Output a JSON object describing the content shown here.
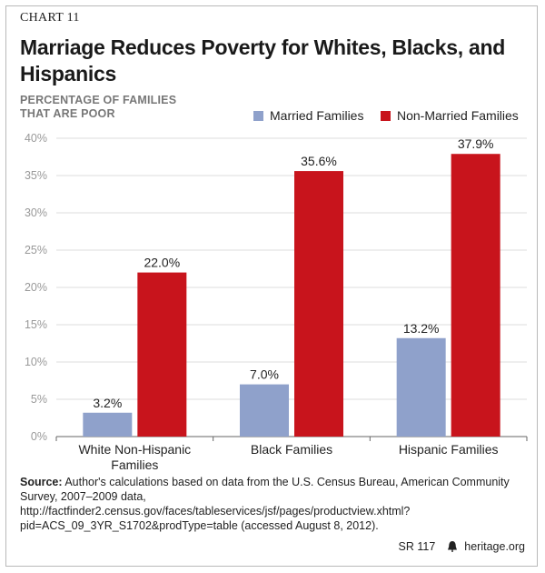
{
  "header": {
    "chart_number": "CHART 11",
    "title": "Marriage Reduces Poverty for Whites, Blacks, and Hispanics",
    "y_axis_label": "PERCENTAGE OF FAMILIES THAT ARE POOR"
  },
  "colors": {
    "married": "#8fa1cb",
    "non_married": "#c8141c",
    "axis": "#666666",
    "grid": "#dddddd"
  },
  "legend": [
    {
      "label": "Married Families",
      "color": "#8fa1cb"
    },
    {
      "label": "Non-Married Families",
      "color": "#c8141c"
    }
  ],
  "chart_data": {
    "type": "bar",
    "title": "Marriage Reduces Poverty for Whites, Blacks, and Hispanics",
    "ylabel": "PERCENTAGE OF FAMILIES THAT ARE POOR",
    "xlabel": "",
    "ylim": [
      0,
      40
    ],
    "yticks": [
      "0%",
      "5%",
      "10%",
      "15%",
      "20%",
      "25%",
      "30%",
      "35%",
      "40%"
    ],
    "categories": [
      [
        "White Non-Hispanic",
        "Families"
      ],
      [
        "Black Families"
      ],
      [
        "Hispanic Families"
      ]
    ],
    "series": [
      {
        "name": "Married Families",
        "values": [
          3.2,
          7.0,
          13.2
        ],
        "labels": [
          "3.2%",
          "7.0%",
          "13.2%"
        ]
      },
      {
        "name": "Non-Married Families",
        "values": [
          22.0,
          35.6,
          37.9
        ],
        "labels": [
          "22.0%",
          "35.6%",
          "37.9%"
        ]
      }
    ],
    "legend_position": "top-right"
  },
  "source": {
    "label": "Source:",
    "text": "Author's calculations based on data from the U.S. Census Bureau, American Community Survey, 2007–2009 data, http://factfinder2.census.gov/faces/tableservices/jsf/pages/productview.xhtml?pid=ACS_09_3YR_S1702&prodType=table (accessed August 8, 2012)."
  },
  "footer": {
    "report": "SR 117",
    "site": "heritage.org",
    "logo_icon": "liberty-bell-icon"
  }
}
